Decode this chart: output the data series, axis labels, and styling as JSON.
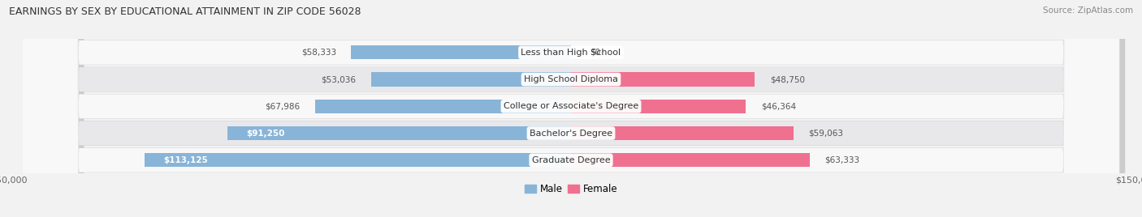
{
  "title": "EARNINGS BY SEX BY EDUCATIONAL ATTAINMENT IN ZIP CODE 56028",
  "source": "Source: ZipAtlas.com",
  "categories": [
    "Less than High School",
    "High School Diploma",
    "College or Associate's Degree",
    "Bachelor's Degree",
    "Graduate Degree"
  ],
  "male_values": [
    58333,
    53036,
    67986,
    91250,
    113125
  ],
  "female_values": [
    0,
    48750,
    46364,
    59063,
    63333
  ],
  "male_color": "#88b4d8",
  "female_color": "#f07090",
  "max_value": 150000,
  "bar_height": 0.52,
  "bg_color": "#f2f2f2",
  "row_bg_light": "#f8f8f8",
  "row_bg_dark": "#e8e8eb"
}
